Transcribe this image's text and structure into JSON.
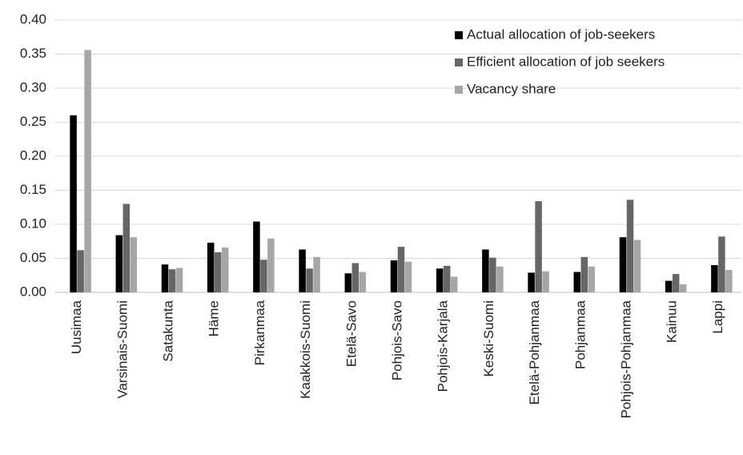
{
  "chart_data": {
    "type": "bar",
    "categories": [
      "Uusimaa",
      "Varsinais-Suomi",
      "Satakunta",
      "Häme",
      "Pirkanmaa",
      "Kaakkois-Suomi",
      "Etelä-Savo",
      "Pohjois-Savo",
      "Pohjois-Karjala",
      "Keski-Suomi",
      "Etelä-Pohjanmaa",
      "Pohjanmaa",
      "Pohjois-Pohjanmaa",
      "Kainuu",
      "Lappi"
    ],
    "series": [
      {
        "name": "Actual allocation of job-seekers",
        "color": "#000000",
        "values": [
          0.26,
          0.084,
          0.041,
          0.073,
          0.104,
          0.063,
          0.028,
          0.047,
          0.035,
          0.063,
          0.029,
          0.03,
          0.081,
          0.017,
          0.04
        ]
      },
      {
        "name": "Efficient allocation of job seekers",
        "color": "#666666",
        "values": [
          0.062,
          0.13,
          0.034,
          0.059,
          0.048,
          0.035,
          0.043,
          0.067,
          0.039,
          0.051,
          0.134,
          0.052,
          0.136,
          0.027,
          0.082
        ]
      },
      {
        "name": "Vacancy share",
        "color": "#a6a6a6",
        "values": [
          0.356,
          0.081,
          0.036,
          0.066,
          0.079,
          0.052,
          0.03,
          0.045,
          0.023,
          0.038,
          0.031,
          0.038,
          0.077,
          0.012,
          0.033
        ]
      }
    ],
    "ylim": [
      0,
      0.4
    ],
    "yticks": [
      {
        "value": 0,
        "label": "0.00"
      },
      {
        "value": 0.05,
        "label": "0.05"
      },
      {
        "value": 0.1,
        "label": "0.10"
      },
      {
        "value": 0.15,
        "label": "0.15"
      },
      {
        "value": 0.2,
        "label": "0.20"
      },
      {
        "value": 0.25,
        "label": "0.25"
      },
      {
        "value": 0.3,
        "label": "0.30"
      },
      {
        "value": 0.35,
        "label": "0.35"
      },
      {
        "value": 0.4,
        "label": "0.40"
      }
    ],
    "grid": true,
    "legend_position": "top-right"
  }
}
